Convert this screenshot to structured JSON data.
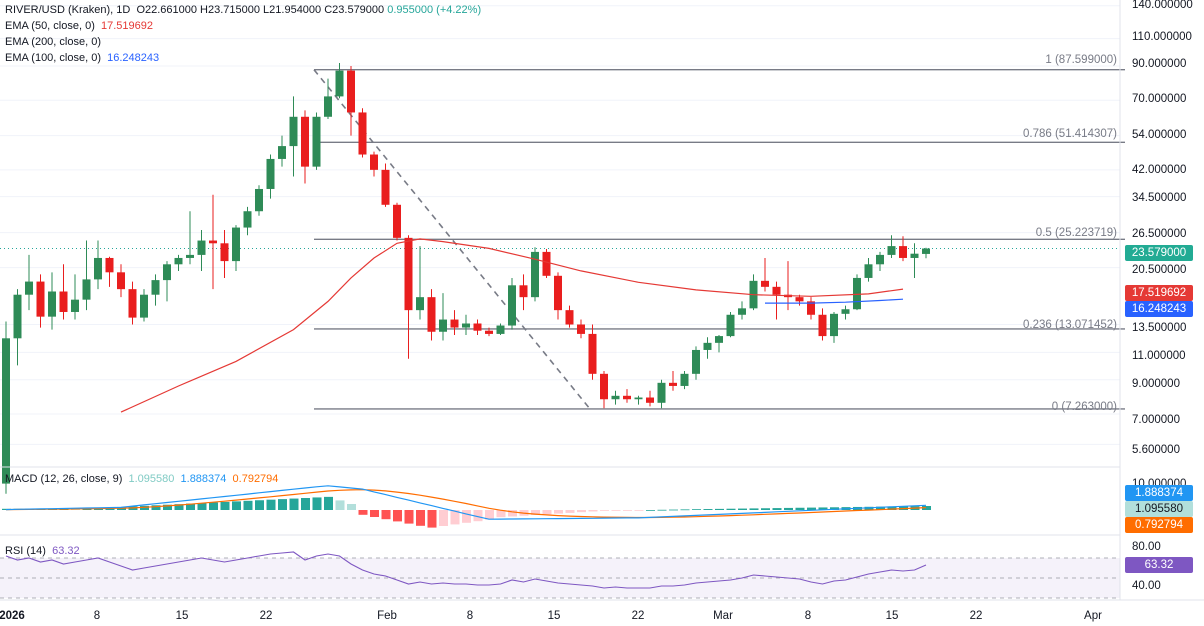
{
  "header": {
    "symbol": "RIVER/USD (Kraken), 1D",
    "ohlc_text": "O22.661000  H23.715000  L21.954000  C23.579000",
    "change_text": "0.955000 (+4.22%)",
    "ema50_label": "EMA (50, close, 0)",
    "ema50_value": "17.519692",
    "ema200_label": "EMA (200, close, 0)",
    "ema100_label": "EMA (100, close, 0)",
    "ema100_value": "16.248243",
    "macd_label": "MACD (12, 26, close, 9)",
    "macd_hist": "1.095580",
    "macd_line": "1.888374",
    "macd_signal": "0.792794",
    "rsi_label": "RSI (14)",
    "rsi_value": "63.32"
  },
  "badges": {
    "price": "23.579000",
    "ema50": "17.519692",
    "ema100": "16.248243",
    "macd_line": "1.888374",
    "macd_hist": "1.095580",
    "macd_signal": "0.792794",
    "rsi": "63.32"
  },
  "price_axis": [
    "140.000000",
    "110.000000",
    "90.000000",
    "70.000000",
    "54.000000",
    "42.000000",
    "34.500000",
    "26.500000",
    "20.500000",
    "13.500000",
    "11.000000",
    "9.000000",
    "7.000000",
    "5.600000"
  ],
  "macd_axis": [
    "10.000000"
  ],
  "rsi_axis": [
    "80.00",
    "40.00"
  ],
  "date_axis": [
    "2026",
    "8",
    "15",
    "22",
    "Feb",
    "8",
    "15",
    "22",
    "Mar",
    "8",
    "15",
    "22",
    "Apr"
  ],
  "fib_labels": [
    "1 (87.599000)",
    "0.786 (51.414307)",
    "0.5 (25.223719)",
    "0.236 (13.071452)",
    "0 (7.263000)"
  ],
  "colors": {
    "up": "#26a69a",
    "up_body": "#2e8b57",
    "down": "#e91e1e",
    "ema50": "#e53935",
    "ema100": "#2962ff",
    "macd_line": "#2196f3",
    "macd_signal": "#ff6d00",
    "rsi": "#7e57c2",
    "fib": "#787b86"
  },
  "chart_data": {
    "type": "candlestick",
    "symbol": "RIVER/USD (Kraken)",
    "timeframe": "1D",
    "y_scale": "log",
    "ylim": [
      5.1,
      150
    ],
    "fib_levels": [
      {
        "ratio": "1",
        "price": 87.599
      },
      {
        "ratio": "0.786",
        "price": 51.414307
      },
      {
        "ratio": "0.5",
        "price": 25.223719
      },
      {
        "ratio": "0.236",
        "price": 13.071452
      },
      {
        "ratio": "0",
        "price": 7.263
      }
    ],
    "candles": [
      {
        "o": 4.2,
        "h": 13.8,
        "l": 3.9,
        "c": 12.2
      },
      {
        "o": 12.2,
        "h": 17.5,
        "l": 10.0,
        "c": 16.8
      },
      {
        "o": 16.8,
        "h": 22.5,
        "l": 15.0,
        "c": 18.5
      },
      {
        "o": 18.5,
        "h": 19.5,
        "l": 13.2,
        "c": 14.3
      },
      {
        "o": 14.3,
        "h": 19.8,
        "l": 13.0,
        "c": 17.2
      },
      {
        "o": 17.2,
        "h": 21.0,
        "l": 14.0,
        "c": 14.8
      },
      {
        "o": 14.8,
        "h": 19.5,
        "l": 14.0,
        "c": 16.2
      },
      {
        "o": 16.2,
        "h": 25.0,
        "l": 15.0,
        "c": 18.8
      },
      {
        "o": 18.8,
        "h": 25.0,
        "l": 17.5,
        "c": 22.0
      },
      {
        "o": 22.0,
        "h": 22.2,
        "l": 17.8,
        "c": 19.8
      },
      {
        "o": 19.8,
        "h": 21.0,
        "l": 16.5,
        "c": 17.5
      },
      {
        "o": 17.5,
        "h": 18.5,
        "l": 13.5,
        "c": 14.2
      },
      {
        "o": 14.2,
        "h": 17.5,
        "l": 13.8,
        "c": 16.8
      },
      {
        "o": 16.8,
        "h": 19.5,
        "l": 15.5,
        "c": 18.7
      },
      {
        "o": 18.7,
        "h": 21.5,
        "l": 16.0,
        "c": 21.0
      },
      {
        "o": 21.0,
        "h": 22.5,
        "l": 20.0,
        "c": 22.0
      },
      {
        "o": 22.0,
        "h": 31.0,
        "l": 21.0,
        "c": 22.5
      },
      {
        "o": 22.5,
        "h": 27.0,
        "l": 20.0,
        "c": 25.0
      },
      {
        "o": 25.0,
        "h": 35.0,
        "l": 17.5,
        "c": 24.5
      },
      {
        "o": 24.5,
        "h": 27.0,
        "l": 19.0,
        "c": 21.5
      },
      {
        "o": 21.5,
        "h": 28.0,
        "l": 20.0,
        "c": 27.5
      },
      {
        "o": 27.5,
        "h": 32.0,
        "l": 26.0,
        "c": 31.0
      },
      {
        "o": 31.0,
        "h": 37.5,
        "l": 30.0,
        "c": 36.5
      },
      {
        "o": 36.5,
        "h": 47.0,
        "l": 34.0,
        "c": 45.5
      },
      {
        "o": 45.5,
        "h": 54.0,
        "l": 43.0,
        "c": 50.0
      },
      {
        "o": 50.0,
        "h": 72.0,
        "l": 40.0,
        "c": 62.0
      },
      {
        "o": 62.0,
        "h": 65.0,
        "l": 38.0,
        "c": 43.0
      },
      {
        "o": 43.0,
        "h": 64.0,
        "l": 42.0,
        "c": 62.0
      },
      {
        "o": 62.0,
        "h": 82.0,
        "l": 61.0,
        "c": 72.0
      },
      {
        "o": 72.0,
        "h": 92.0,
        "l": 71.0,
        "c": 87.0
      },
      {
        "o": 87.0,
        "h": 90.0,
        "l": 54.0,
        "c": 64.0
      },
      {
        "o": 64.0,
        "h": 66.0,
        "l": 46.0,
        "c": 47.0
      },
      {
        "o": 47.0,
        "h": 48.0,
        "l": 40.0,
        "c": 42.0
      },
      {
        "o": 42.0,
        "h": 44.0,
        "l": 32.0,
        "c": 32.5
      },
      {
        "o": 32.5,
        "h": 33.0,
        "l": 25.0,
        "c": 25.5
      },
      {
        "o": 25.5,
        "h": 26.0,
        "l": 10.5,
        "c": 15.0
      },
      {
        "o": 15.0,
        "h": 24.0,
        "l": 14.0,
        "c": 16.5
      },
      {
        "o": 16.5,
        "h": 17.5,
        "l": 12.0,
        "c": 12.8
      },
      {
        "o": 12.8,
        "h": 17.0,
        "l": 12.0,
        "c": 14.0
      },
      {
        "o": 14.0,
        "h": 15.0,
        "l": 12.5,
        "c": 13.2
      },
      {
        "o": 13.2,
        "h": 14.5,
        "l": 12.5,
        "c": 13.6
      },
      {
        "o": 13.6,
        "h": 14.0,
        "l": 12.5,
        "c": 12.9
      },
      {
        "o": 12.9,
        "h": 13.2,
        "l": 12.4,
        "c": 12.6
      },
      {
        "o": 12.6,
        "h": 13.6,
        "l": 12.5,
        "c": 13.4
      },
      {
        "o": 13.4,
        "h": 19.0,
        "l": 13.0,
        "c": 18.0
      },
      {
        "o": 18.0,
        "h": 19.5,
        "l": 15.0,
        "c": 16.5
      },
      {
        "o": 16.5,
        "h": 23.8,
        "l": 16.0,
        "c": 23.0
      },
      {
        "o": 23.0,
        "h": 23.5,
        "l": 19.0,
        "c": 19.3
      },
      {
        "o": 19.3,
        "h": 19.8,
        "l": 14.0,
        "c": 15.0
      },
      {
        "o": 15.0,
        "h": 15.5,
        "l": 13.2,
        "c": 13.5
      },
      {
        "o": 13.5,
        "h": 14.0,
        "l": 12.2,
        "c": 12.6
      },
      {
        "o": 12.6,
        "h": 13.5,
        "l": 9.0,
        "c": 9.4
      },
      {
        "o": 9.4,
        "h": 9.6,
        "l": 7.3,
        "c": 7.8
      },
      {
        "o": 7.8,
        "h": 8.3,
        "l": 7.5,
        "c": 8.0
      },
      {
        "o": 8.0,
        "h": 8.4,
        "l": 7.6,
        "c": 7.8
      },
      {
        "o": 7.8,
        "h": 8.0,
        "l": 7.5,
        "c": 7.9
      },
      {
        "o": 7.9,
        "h": 8.3,
        "l": 7.4,
        "c": 7.6
      },
      {
        "o": 7.6,
        "h": 9.0,
        "l": 7.3,
        "c": 8.8
      },
      {
        "o": 8.8,
        "h": 9.6,
        "l": 8.3,
        "c": 8.6
      },
      {
        "o": 8.6,
        "h": 9.6,
        "l": 8.4,
        "c": 9.4
      },
      {
        "o": 9.4,
        "h": 11.5,
        "l": 9.0,
        "c": 11.2
      },
      {
        "o": 11.2,
        "h": 12.3,
        "l": 10.5,
        "c": 11.8
      },
      {
        "o": 11.8,
        "h": 12.5,
        "l": 11.0,
        "c": 12.4
      },
      {
        "o": 12.4,
        "h": 14.8,
        "l": 12.3,
        "c": 14.5
      },
      {
        "o": 14.5,
        "h": 16.0,
        "l": 14.0,
        "c": 15.2
      },
      {
        "o": 15.2,
        "h": 19.5,
        "l": 15.0,
        "c": 18.6
      },
      {
        "o": 18.6,
        "h": 22.0,
        "l": 17.2,
        "c": 17.8
      },
      {
        "o": 17.8,
        "h": 18.5,
        "l": 14.0,
        "c": 16.8
      },
      {
        "o": 16.8,
        "h": 21.5,
        "l": 15.0,
        "c": 16.5
      },
      {
        "o": 16.5,
        "h": 16.8,
        "l": 15.5,
        "c": 16.0
      },
      {
        "o": 16.0,
        "h": 16.5,
        "l": 14.0,
        "c": 14.5
      },
      {
        "o": 14.5,
        "h": 15.2,
        "l": 12.0,
        "c": 12.4
      },
      {
        "o": 12.4,
        "h": 14.8,
        "l": 11.8,
        "c": 14.6
      },
      {
        "o": 14.6,
        "h": 15.5,
        "l": 14.0,
        "c": 15.1
      },
      {
        "o": 15.1,
        "h": 19.5,
        "l": 15.0,
        "c": 19.0
      },
      {
        "o": 19.0,
        "h": 22.0,
        "l": 18.5,
        "c": 21.0
      },
      {
        "o": 21.0,
        "h": 23.0,
        "l": 20.0,
        "c": 22.5
      },
      {
        "o": 22.5,
        "h": 26.0,
        "l": 22.0,
        "c": 24.0
      },
      {
        "o": 24.0,
        "h": 25.8,
        "l": 21.5,
        "c": 22.0
      },
      {
        "o": 22.0,
        "h": 24.5,
        "l": 19.0,
        "c": 22.7
      },
      {
        "o": 22.661,
        "h": 23.715,
        "l": 21.954,
        "c": 23.579
      }
    ],
    "ema50": [
      [
        10,
        7.1
      ],
      [
        15,
        8.6
      ],
      [
        20,
        10.3
      ],
      [
        25,
        13.0
      ],
      [
        28,
        16.0
      ],
      [
        30,
        19.0
      ],
      [
        32,
        22.0
      ],
      [
        34,
        24.5
      ],
      [
        36,
        25.3
      ],
      [
        38,
        24.8
      ],
      [
        42,
        23.6
      ],
      [
        46,
        21.8
      ],
      [
        50,
        20.0
      ],
      [
        55,
        18.4
      ],
      [
        60,
        17.4
      ],
      [
        65,
        16.8
      ],
      [
        70,
        16.6
      ],
      [
        75,
        16.9
      ],
      [
        78,
        17.5
      ]
    ],
    "ema100": [
      [
        66,
        15.8
      ],
      [
        70,
        15.8
      ],
      [
        73,
        15.9
      ],
      [
        76,
        16.1
      ],
      [
        78,
        16.25
      ]
    ],
    "ema_current": {
      "ema50": 17.519692,
      "ema100": 16.248243
    },
    "macd": {
      "labels": [
        "MACD (12, 26, close, 9)"
      ],
      "current": {
        "histogram": 1.09558,
        "macd": 1.888374,
        "signal": 0.792794
      }
    },
    "rsi": {
      "period": 14,
      "current": 63.32,
      "ylim": [
        30,
        90
      ],
      "band": [
        30,
        70
      ]
    }
  }
}
